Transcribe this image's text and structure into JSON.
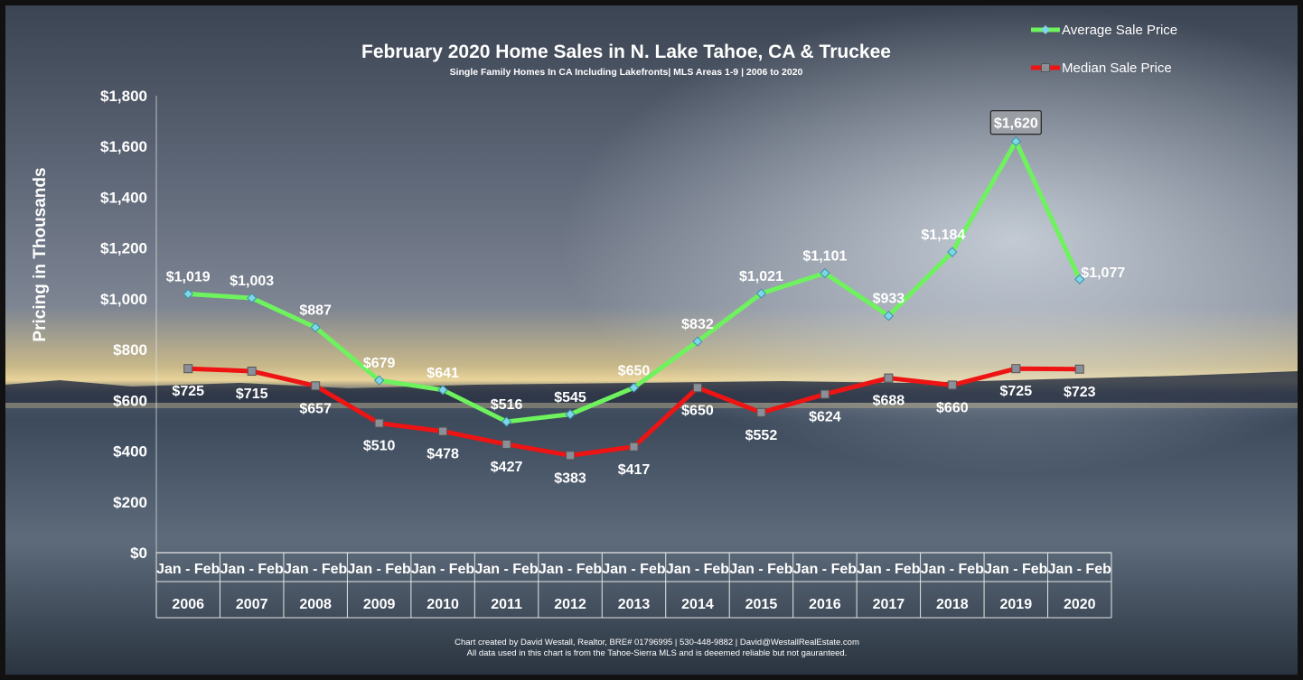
{
  "chart_data": {
    "type": "line",
    "title": "February 2020 Home Sales in N. Lake Tahoe, CA & Truckee",
    "subtitle": "Single Family Homes In CA Including Lakefronts| MLS Areas 1-9 | 2006 to 2020",
    "ylabel": "Pricing in Thousands",
    "ylim": [
      0,
      1800
    ],
    "yticks": [
      "$0",
      "$200",
      "$400",
      "$600",
      "$800",
      "$1,000",
      "$1,200",
      "$1,400",
      "$1,600",
      "$1,800"
    ],
    "ytick_values": [
      0,
      200,
      400,
      600,
      800,
      1000,
      1200,
      1400,
      1600,
      1800
    ],
    "categories": [
      "2006",
      "2007",
      "2008",
      "2009",
      "2010",
      "2011",
      "2012",
      "2013",
      "2014",
      "2015",
      "2016",
      "2017",
      "2018",
      "2019",
      "2020"
    ],
    "period_label": "Jan - Feb",
    "legend_position": "top-right",
    "series": [
      {
        "name": "Average Sale Price",
        "color": "#6ef25e",
        "marker_color": "#7fd6e6",
        "values": [
          1019,
          1003,
          887,
          679,
          641,
          516,
          545,
          650,
          832,
          1021,
          1101,
          933,
          1184,
          1620,
          1077
        ],
        "labels": [
          "$1,019",
          "$1,003",
          "$887",
          "$679",
          "$641",
          "$516",
          "$545",
          "$650",
          "$832",
          "$1,021",
          "$1,101",
          "$933",
          "$1,184",
          "$1,620",
          "$1,077"
        ]
      },
      {
        "name": "Median Sale Price",
        "color": "#ee1414",
        "marker_color": "#8a8f98",
        "values": [
          725,
          715,
          657,
          510,
          478,
          427,
          383,
          417,
          650,
          552,
          624,
          688,
          660,
          725,
          723
        ],
        "labels": [
          "$725",
          "$715",
          "$657",
          "$510",
          "$478",
          "$427",
          "$383",
          "$417",
          "$650",
          "$552",
          "$624",
          "$688",
          "$660",
          "$725",
          "$723"
        ]
      }
    ],
    "highlight": {
      "series": 0,
      "index": 13
    }
  },
  "footer": {
    "line1": "Chart created by David Westall, Realtor, BRE# 01796995 | 530-448-9882 | David@WestallRealEstate.com",
    "line2": "All data used in this chart is from the Tahoe-Sierra MLS and is deeemed reliable but  not gauranteed."
  }
}
